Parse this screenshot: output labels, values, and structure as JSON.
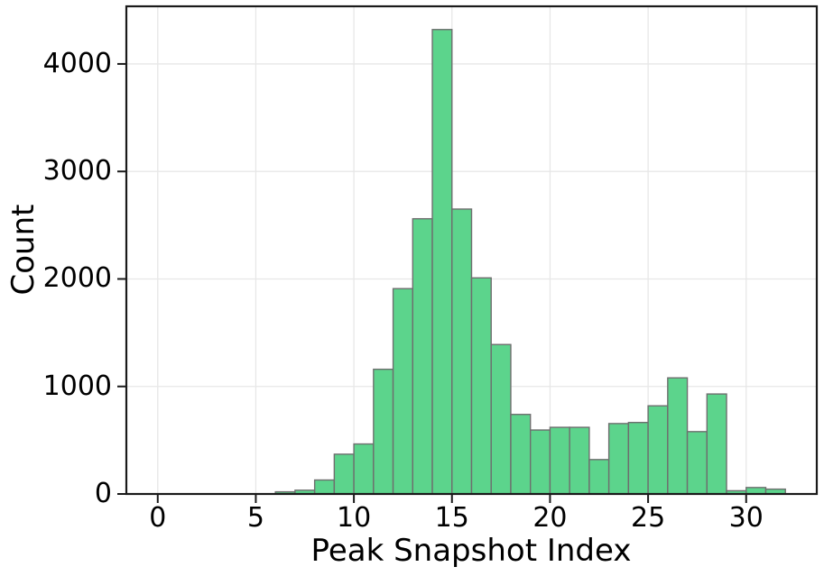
{
  "chart_data": {
    "type": "bar",
    "subtype": "histogram",
    "title": "",
    "xlabel": "Peak Snapshot Index",
    "ylabel": "Count",
    "bin_width": 1,
    "bins_start": [
      6,
      7,
      8,
      9,
      10,
      11,
      12,
      13,
      14,
      15,
      16,
      17,
      18,
      19,
      20,
      21,
      22,
      23,
      24,
      25,
      26,
      27,
      28,
      29,
      30,
      31
    ],
    "counts": [
      20,
      35,
      130,
      370,
      465,
      1160,
      1910,
      2560,
      4320,
      2650,
      2010,
      1390,
      740,
      595,
      620,
      620,
      320,
      655,
      665,
      820,
      1080,
      580,
      930,
      30,
      60,
      45
    ],
    "xticks": [
      0,
      5,
      10,
      15,
      20,
      25,
      30
    ],
    "yticks": [
      0,
      1000,
      2000,
      3000,
      4000
    ],
    "xlim": [
      -1.6,
      33.6
    ],
    "ylim": [
      0,
      4536
    ],
    "grid": true,
    "legend_position": "none",
    "colors": {
      "bar_fill": "#5CD48C",
      "bar_edge": "#6E6E6E",
      "grid": "#E7E7E7",
      "spine": "#1A1A1A",
      "text": "#000000"
    }
  }
}
